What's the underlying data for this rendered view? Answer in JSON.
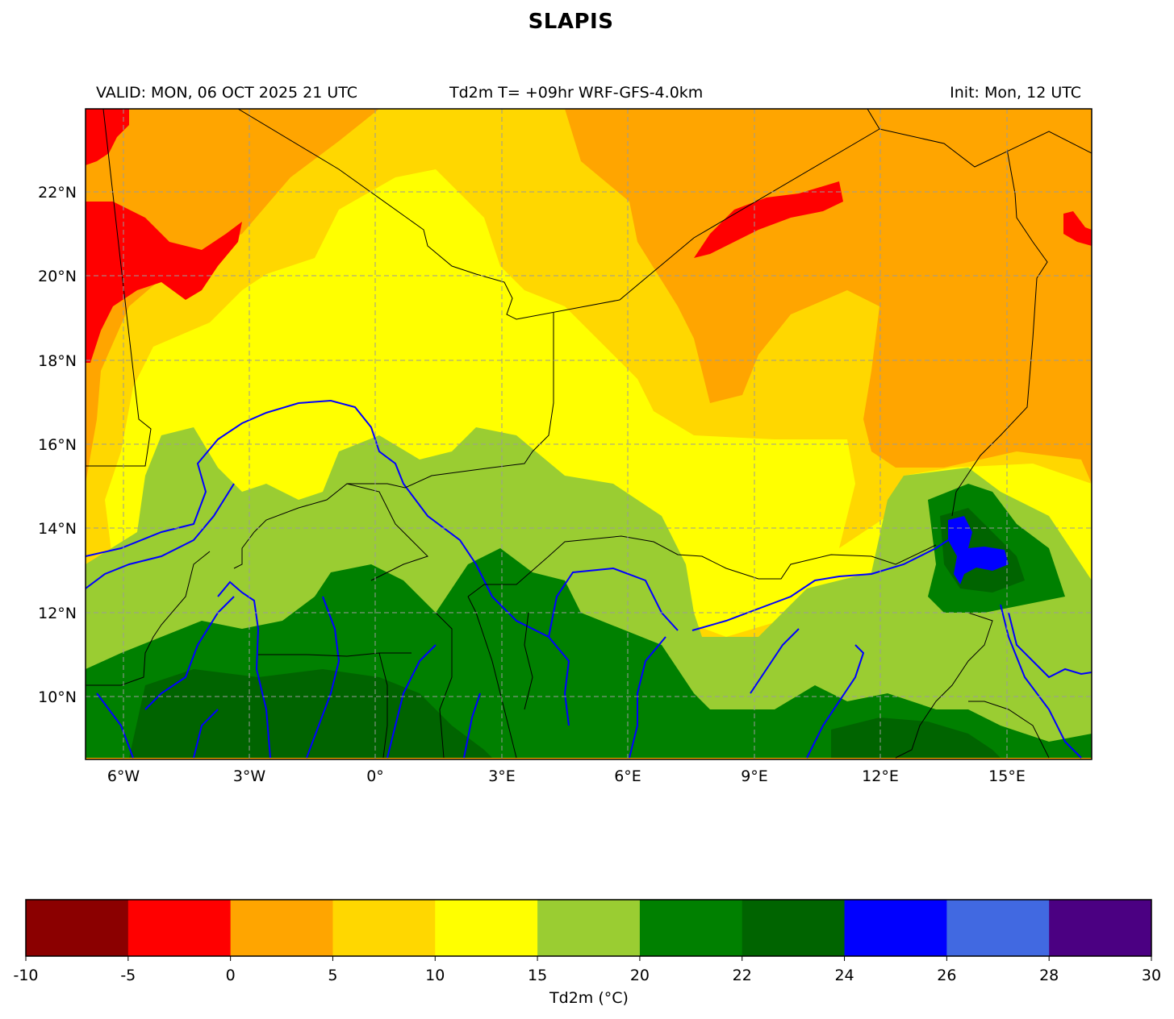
{
  "title": "SLAPIS",
  "subtitle_left": "VALID: MON, 06 OCT 2025 21 UTC",
  "subtitle_center": "Td2m T= +09hr WRF-GFS-4.0km",
  "subtitle_right": "Init: Mon, 12 UTC",
  "map": {
    "lon_range": [
      -7,
      17
    ],
    "lat_range": [
      8.5,
      24
    ],
    "x_ticks": [
      "6°W",
      "3°W",
      "0°",
      "3°E",
      "6°E",
      "9°E",
      "12°E",
      "15°E"
    ],
    "y_ticks": [
      "22°N",
      "20°N",
      "18°N",
      "16°N",
      "14°N",
      "12°N",
      "10°N"
    ],
    "gridlines": true
  },
  "colorbar": {
    "label": "Td2m (°C)",
    "ticks": [
      "-10",
      "-5",
      "0",
      "5",
      "10",
      "15",
      "20",
      "22",
      "24",
      "26",
      "28",
      "30"
    ],
    "colors": [
      "#8b0000",
      "#ff0000",
      "#ffa500",
      "#ffd700",
      "#ffff00",
      "#9acd32",
      "#008000",
      "#006400",
      "#0000ff",
      "#4169e1",
      "#4b0082"
    ]
  }
}
